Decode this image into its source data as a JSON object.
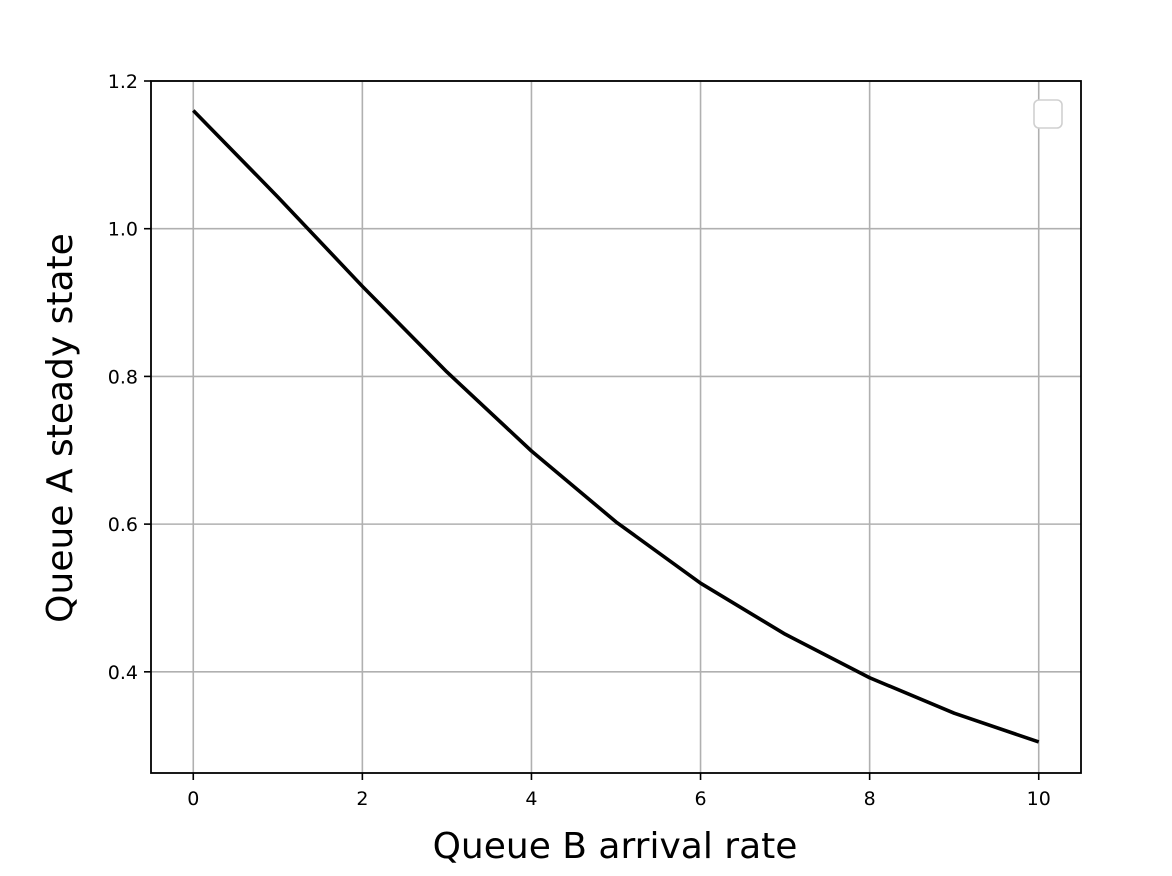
{
  "chart_data": {
    "type": "line",
    "title": "",
    "xlabel": "Queue B arrival rate",
    "ylabel": "Queue A steady state",
    "xlim": [
      -0.5,
      10.5
    ],
    "ylim": [
      0.263,
      1.2
    ],
    "xticks": [
      0,
      2,
      4,
      6,
      8,
      10
    ],
    "xtick_labels": [
      "0",
      "2",
      "4",
      "6",
      "8",
      "10"
    ],
    "yticks": [
      0.4,
      0.6,
      0.8,
      1.0,
      1.2
    ],
    "ytick_labels": [
      "0.4",
      "0.6",
      "0.8",
      "1.0",
      "1.2"
    ],
    "grid": true,
    "legend": {
      "placement": "upper-right",
      "entries": []
    },
    "series": [
      {
        "color": "#000000",
        "x": [
          0,
          1,
          2,
          3,
          4,
          5,
          6,
          7,
          8,
          9,
          10
        ],
        "y": [
          1.16,
          1.043,
          0.922,
          0.806,
          0.699,
          0.603,
          0.52,
          0.451,
          0.392,
          0.344,
          0.305
        ]
      }
    ]
  }
}
